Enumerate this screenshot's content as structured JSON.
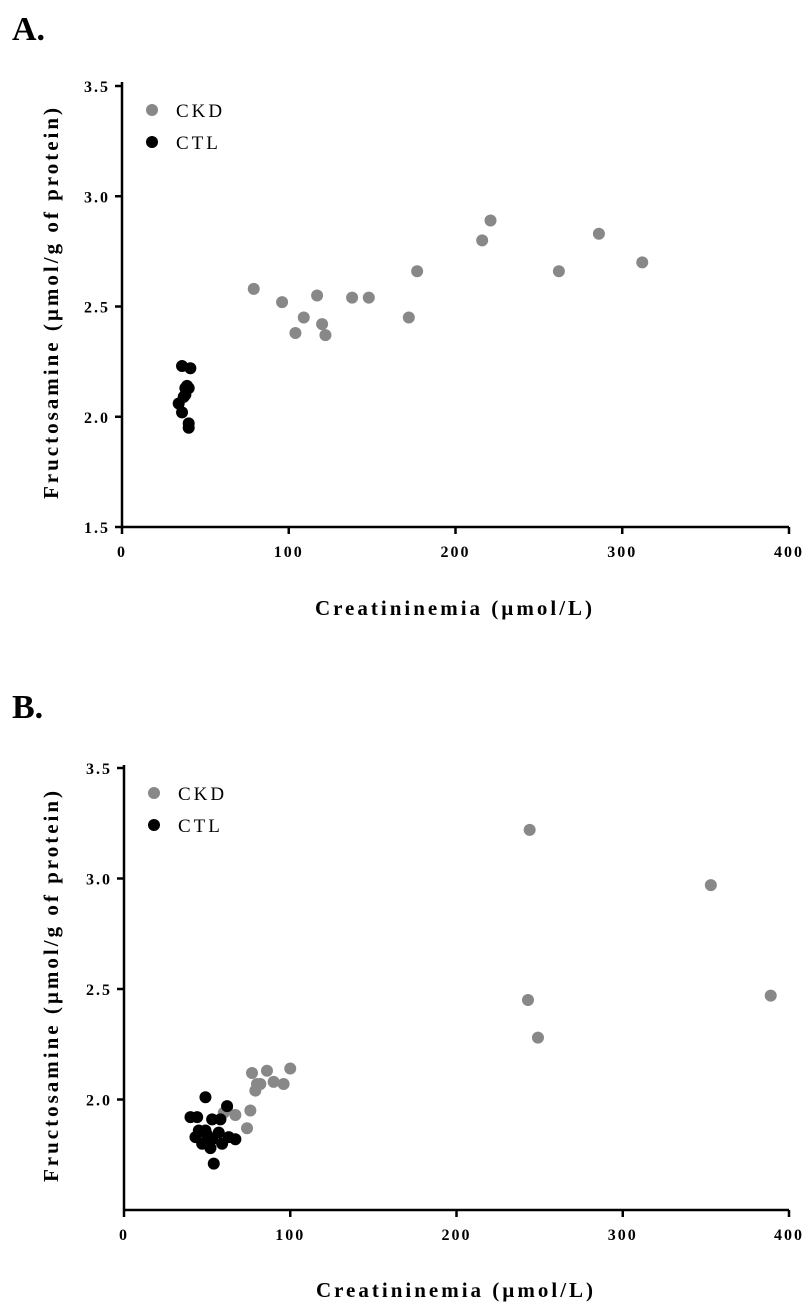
{
  "chart_data": [
    {
      "type": "scatter",
      "panel_label": "A.",
      "xlabel": "Creatininemia (µmol/L)",
      "ylabel": "Fructosamine (µmol/g of protein)",
      "xlim": [
        0,
        400
      ],
      "ylim": [
        1.5,
        3.5
      ],
      "xticks": [
        0,
        100,
        200,
        300,
        400
      ],
      "xtick_labels": [
        "0",
        "100",
        "200",
        "300",
        "400"
      ],
      "yticks": [
        1.5,
        2.0,
        2.5,
        3.0,
        3.5
      ],
      "ytick_labels": [
        "1.5",
        "2.0",
        "2.5",
        "3.0",
        "3.5"
      ],
      "grid": false,
      "legend_position": "top-left",
      "series": [
        {
          "name": "CKD",
          "color": "#888888",
          "points": [
            [
              79,
              2.58
            ],
            [
              96,
              2.52
            ],
            [
              104,
              2.38
            ],
            [
              109,
              2.45
            ],
            [
              117,
              2.55
            ],
            [
              120,
              2.42
            ],
            [
              122,
              2.37
            ],
            [
              138,
              2.54
            ],
            [
              148,
              2.54
            ],
            [
              172,
              2.45
            ],
            [
              177,
              2.66
            ],
            [
              216,
              2.8
            ],
            [
              221,
              2.89
            ],
            [
              262,
              2.66
            ],
            [
              286,
              2.83
            ],
            [
              312,
              2.7
            ]
          ]
        },
        {
          "name": "CTL",
          "color": "#000000",
          "points": [
            [
              34,
              2.06
            ],
            [
              36,
              2.23
            ],
            [
              36,
              2.02
            ],
            [
              37,
              2.09
            ],
            [
              38,
              2.1
            ],
            [
              38,
              2.13
            ],
            [
              39,
              2.14
            ],
            [
              40,
              2.13
            ],
            [
              40,
              1.97
            ],
            [
              40,
              1.95
            ],
            [
              41,
              2.22
            ]
          ]
        }
      ]
    },
    {
      "type": "scatter",
      "panel_label": "B.",
      "xlabel": "Creatininemia (µmol/L)",
      "ylabel": "Fructosamine (µmol/g of protein)",
      "xlim": [
        0,
        400
      ],
      "ylim": [
        1.5,
        3.5
      ],
      "xticks": [
        0,
        100,
        200,
        300,
        400
      ],
      "xtick_labels": [
        "0",
        "100",
        "200",
        "300",
        "400"
      ],
      "yticks": [
        2.0,
        2.5,
        3.0,
        3.5
      ],
      "ytick_labels": [
        "2.0",
        "2.5",
        "3.0",
        "3.5"
      ],
      "grid": false,
      "legend_position": "top-left",
      "series": [
        {
          "name": "CKD",
          "color": "#888888",
          "points": [
            [
              60,
              1.94
            ],
            [
              62,
              1.96
            ],
            [
              67,
              1.93
            ],
            [
              74,
              1.87
            ],
            [
              76,
              1.95
            ],
            [
              77,
              2.12
            ],
            [
              79,
              2.04
            ],
            [
              80,
              2.07
            ],
            [
              82,
              2.07
            ],
            [
              86,
              2.13
            ],
            [
              90,
              2.08
            ],
            [
              96,
              2.07
            ],
            [
              100,
              2.14
            ],
            [
              243,
              2.45
            ],
            [
              244,
              3.22
            ],
            [
              249,
              2.28
            ],
            [
              353,
              2.97
            ],
            [
              389,
              2.47
            ]
          ]
        },
        {
          "name": "CTL",
          "color": "#000000",
          "points": [
            [
              40,
              1.92
            ],
            [
              43,
              1.83
            ],
            [
              44,
              1.92
            ],
            [
              45,
              1.86
            ],
            [
              47,
              1.8
            ],
            [
              49,
              2.01
            ],
            [
              49,
              1.86
            ],
            [
              50,
              1.84
            ],
            [
              52,
              1.78
            ],
            [
              53,
              1.82
            ],
            [
              53,
              1.91
            ],
            [
              54,
              1.71
            ],
            [
              57,
              1.85
            ],
            [
              58,
              1.91
            ],
            [
              59,
              1.8
            ],
            [
              62,
              1.97
            ],
            [
              63,
              1.83
            ],
            [
              67,
              1.82
            ]
          ]
        }
      ]
    }
  ]
}
